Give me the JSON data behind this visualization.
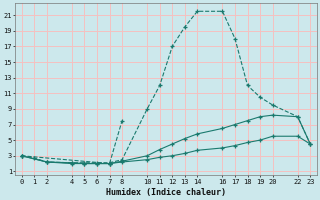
{
  "title": "",
  "xlabel": "Humidex (Indice chaleur)",
  "bg_color": "#cce8ec",
  "grid_color": "#f5c0c0",
  "line_color": "#1a7a6e",
  "xlim": [
    -0.5,
    23.5
  ],
  "ylim": [
    0.5,
    22.5
  ],
  "xticks": [
    0,
    1,
    2,
    4,
    5,
    6,
    7,
    8,
    10,
    11,
    12,
    13,
    14,
    16,
    17,
    18,
    19,
    20,
    22,
    23
  ],
  "yticks": [
    1,
    3,
    5,
    7,
    9,
    11,
    13,
    15,
    17,
    19,
    21
  ],
  "line1_x": [
    0,
    1,
    2,
    4,
    5,
    6,
    7,
    8,
    10,
    11,
    12,
    13,
    14,
    16,
    17,
    18,
    19,
    20,
    22,
    23
  ],
  "line1_y": [
    3,
    2.7,
    2.2,
    2.1,
    2.1,
    2.1,
    2.1,
    2.5,
    9,
    12,
    17,
    19.5,
    21.5,
    21.5,
    18,
    12,
    10.5,
    9.5,
    8.0,
    4.5
  ],
  "line2_x": [
    0,
    2,
    4,
    5,
    6,
    7,
    8,
    10,
    11,
    12,
    13,
    14,
    16,
    17,
    18,
    19,
    20,
    22,
    23
  ],
  "line2_y": [
    3.0,
    2.2,
    2.1,
    2.0,
    2.0,
    2.0,
    2.3,
    3.0,
    3.8,
    4.5,
    5.2,
    5.8,
    6.5,
    7.0,
    7.5,
    8.0,
    8.2,
    8.0,
    4.5
  ],
  "line3_x": [
    0,
    2,
    4,
    5,
    6,
    7,
    8,
    10,
    11,
    12,
    13,
    14,
    16,
    17,
    18,
    19,
    20,
    22,
    23
  ],
  "line3_y": [
    3.0,
    2.2,
    2.0,
    2.0,
    2.0,
    2.0,
    2.2,
    2.5,
    2.8,
    3.0,
    3.3,
    3.7,
    4.0,
    4.3,
    4.7,
    5.0,
    5.5,
    5.5,
    4.5
  ],
  "line4_x": [
    0,
    7,
    8
  ],
  "line4_y": [
    3.0,
    2.0,
    7.5
  ],
  "figsize": [
    3.2,
    2.0
  ],
  "dpi": 100
}
